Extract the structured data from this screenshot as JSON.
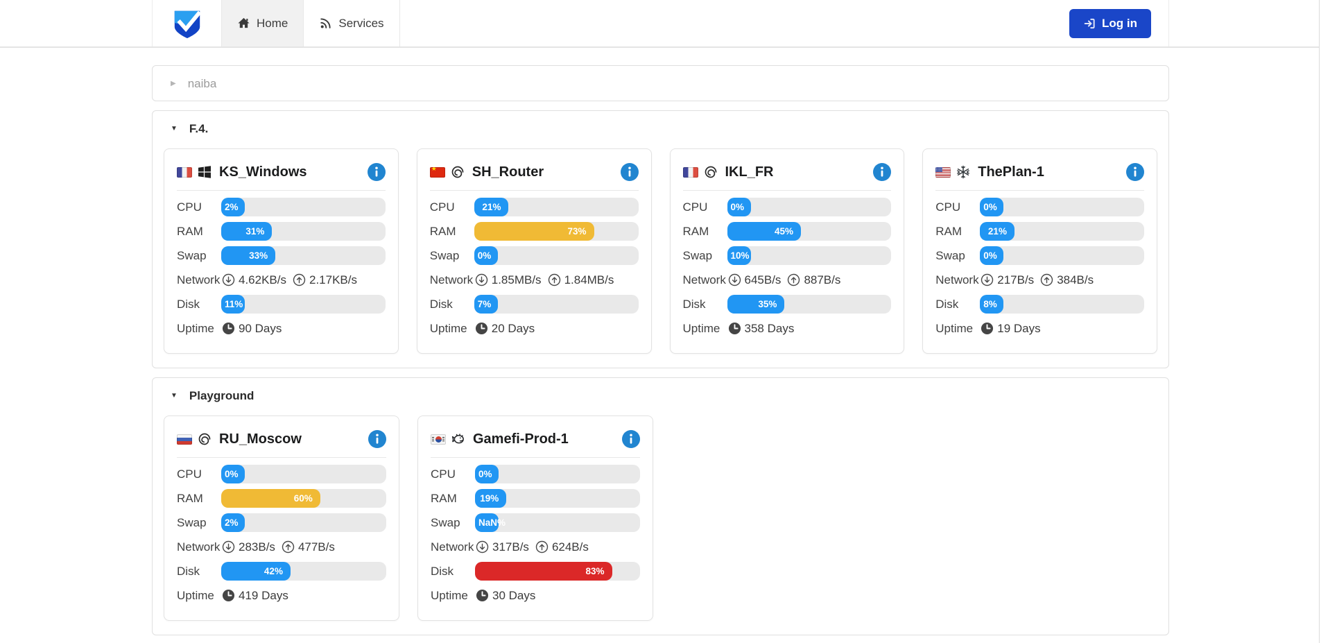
{
  "navbar": {
    "logo_name": "shield-check-logo",
    "tabs": [
      {
        "label": "Home",
        "active": true
      },
      {
        "label": "Services",
        "active": false
      }
    ],
    "login_label": "Log in"
  },
  "labels": {
    "cpu": "CPU",
    "ram": "RAM",
    "swap": "Swap",
    "network": "Network",
    "disk": "Disk",
    "uptime": "Uptime"
  },
  "colors": {
    "bar_blue": "#2196f3",
    "bar_yellow": "#f0ba35",
    "bar_red": "#db2828",
    "bar_track": "#e9e9e9",
    "info_blue": "#2185d0",
    "login_blue": "#1a46c8"
  },
  "sections": [
    {
      "title": "naiba",
      "collapsed": true,
      "servers": []
    },
    {
      "title": "F.4.",
      "collapsed": false,
      "servers": [
        {
          "name": "KS_Windows",
          "flag": "fr",
          "os": "windows",
          "metrics": {
            "cpu": {
              "label": "2%",
              "value": 2,
              "color": "blue"
            },
            "ram": {
              "label": "31%",
              "value": 31,
              "color": "blue"
            },
            "swap": {
              "label": "33%",
              "value": 33,
              "color": "blue"
            },
            "disk": {
              "label": "11%",
              "value": 11,
              "color": "blue"
            }
          },
          "network": {
            "down": "4.62KB/s",
            "up": "2.17KB/s"
          },
          "uptime": "90 Days"
        },
        {
          "name": "SH_Router",
          "flag": "cn",
          "os": "debian",
          "metrics": {
            "cpu": {
              "label": "21%",
              "value": 21,
              "color": "blue"
            },
            "ram": {
              "label": "73%",
              "value": 73,
              "color": "yellow"
            },
            "swap": {
              "label": "0%",
              "value": 0,
              "color": "blue"
            },
            "disk": {
              "label": "7%",
              "value": 7,
              "color": "blue"
            }
          },
          "network": {
            "down": "1.85MB/s",
            "up": "1.84MB/s"
          },
          "uptime": "20 Days"
        },
        {
          "name": "IKL_FR",
          "flag": "fr",
          "os": "debian",
          "metrics": {
            "cpu": {
              "label": "0%",
              "value": 0,
              "color": "blue"
            },
            "ram": {
              "label": "45%",
              "value": 45,
              "color": "blue"
            },
            "swap": {
              "label": "10%",
              "value": 10,
              "color": "blue"
            },
            "disk": {
              "label": "35%",
              "value": 35,
              "color": "blue"
            }
          },
          "network": {
            "down": "645B/s",
            "up": "887B/s"
          },
          "uptime": "358 Days"
        },
        {
          "name": "ThePlan-1",
          "flag": "us",
          "os": "nixos",
          "metrics": {
            "cpu": {
              "label": "0%",
              "value": 0,
              "color": "blue"
            },
            "ram": {
              "label": "21%",
              "value": 21,
              "color": "blue"
            },
            "swap": {
              "label": "0%",
              "value": 0,
              "color": "blue"
            },
            "disk": {
              "label": "8%",
              "value": 8,
              "color": "blue"
            }
          },
          "network": {
            "down": "217B/s",
            "up": "384B/s"
          },
          "uptime": "19 Days"
        }
      ]
    },
    {
      "title": "Playground",
      "collapsed": false,
      "servers": [
        {
          "name": "RU_Moscow",
          "flag": "ru",
          "os": "debian",
          "metrics": {
            "cpu": {
              "label": "0%",
              "value": 0,
              "color": "blue"
            },
            "ram": {
              "label": "60%",
              "value": 60,
              "color": "yellow"
            },
            "swap": {
              "label": "2%",
              "value": 2,
              "color": "blue"
            },
            "disk": {
              "label": "42%",
              "value": 42,
              "color": "blue"
            }
          },
          "network": {
            "down": "283B/s",
            "up": "477B/s"
          },
          "uptime": "419 Days"
        },
        {
          "name": "Gamefi-Prod-1",
          "flag": "kr",
          "os": "openbsd",
          "metrics": {
            "cpu": {
              "label": "0%",
              "value": 0,
              "color": "blue"
            },
            "ram": {
              "label": "19%",
              "value": 19,
              "color": "blue"
            },
            "swap": {
              "label": "NaN%",
              "value": 0,
              "color": "blue"
            },
            "disk": {
              "label": "83%",
              "value": 83,
              "color": "red"
            }
          },
          "network": {
            "down": "317B/s",
            "up": "624B/s"
          },
          "uptime": "30 Days"
        }
      ]
    }
  ]
}
